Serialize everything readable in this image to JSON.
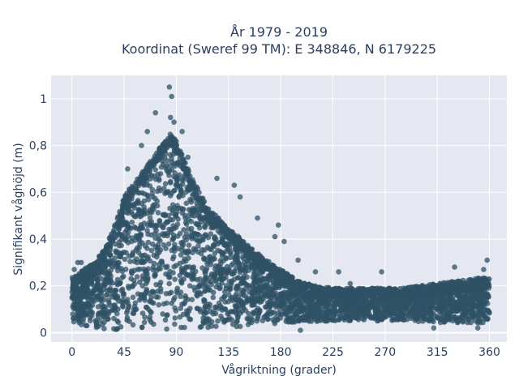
{
  "chart_data": {
    "type": "scatter",
    "title_line1": "År 1979 - 2019",
    "title_line2": "Koordinat (Sweref 99 TM): E 348846, N 6179225",
    "xlabel": "Vågriktning (grader)",
    "ylabel": "Signifikant våghöjd (m)",
    "xlim": [
      -18,
      375
    ],
    "ylim": [
      -0.04,
      1.1
    ],
    "xticks": [
      0,
      45,
      90,
      135,
      180,
      225,
      270,
      315,
      360
    ],
    "xtick_labels": [
      "0",
      "45",
      "90",
      "135",
      "180",
      "225",
      "270",
      "315",
      "360"
    ],
    "yticks": [
      0,
      0.2,
      0.4,
      0.6,
      0.8,
      1
    ],
    "ytick_labels": [
      "0",
      "0,2",
      "0,4",
      "0,6",
      "0,8",
      "1"
    ],
    "grid": true,
    "marker_color": "#2f5165",
    "plot_bg": "#e5e8f0",
    "upper_envelope": {
      "x": [
        0,
        10,
        20,
        30,
        40,
        45,
        50,
        60,
        70,
        80,
        85,
        90,
        100,
        110,
        120,
        135,
        150,
        165,
        180,
        195,
        210,
        225,
        240,
        255,
        270,
        285,
        300,
        315,
        330,
        345,
        360
      ],
      "y": [
        0.24,
        0.27,
        0.3,
        0.38,
        0.5,
        0.58,
        0.62,
        0.68,
        0.75,
        0.82,
        0.85,
        0.82,
        0.7,
        0.6,
        0.52,
        0.45,
        0.38,
        0.32,
        0.27,
        0.22,
        0.2,
        0.19,
        0.19,
        0.19,
        0.19,
        0.19,
        0.2,
        0.21,
        0.22,
        0.23,
        0.24
      ]
    },
    "lower_envelope": {
      "x": [
        0,
        20,
        40,
        90,
        140,
        180,
        225,
        270,
        315,
        360
      ],
      "y": [
        0.04,
        0.02,
        0.01,
        0.01,
        0.02,
        0.04,
        0.05,
        0.05,
        0.04,
        0.04
      ]
    },
    "outliers": [
      {
        "x": 84,
        "y": 1.05
      },
      {
        "x": 86,
        "y": 1.01
      },
      {
        "x": 85,
        "y": 0.92
      },
      {
        "x": 88,
        "y": 0.9
      },
      {
        "x": 72,
        "y": 0.94
      },
      {
        "x": 65,
        "y": 0.86
      },
      {
        "x": 60,
        "y": 0.8
      },
      {
        "x": 48,
        "y": 0.7
      },
      {
        "x": 95,
        "y": 0.86
      },
      {
        "x": 100,
        "y": 0.75
      },
      {
        "x": 125,
        "y": 0.66
      },
      {
        "x": 140,
        "y": 0.63
      },
      {
        "x": 145,
        "y": 0.58
      },
      {
        "x": 160,
        "y": 0.49
      },
      {
        "x": 178,
        "y": 0.46
      },
      {
        "x": 175,
        "y": 0.41
      },
      {
        "x": 183,
        "y": 0.39
      },
      {
        "x": 195,
        "y": 0.31
      },
      {
        "x": 210,
        "y": 0.26
      },
      {
        "x": 230,
        "y": 0.26
      },
      {
        "x": 240,
        "y": 0.21
      },
      {
        "x": 267,
        "y": 0.26
      },
      {
        "x": 330,
        "y": 0.28
      },
      {
        "x": 358,
        "y": 0.31
      },
      {
        "x": 355,
        "y": 0.27
      },
      {
        "x": 2,
        "y": 0.27
      },
      {
        "x": 5,
        "y": 0.3
      },
      {
        "x": 8,
        "y": 0.3
      },
      {
        "x": 197,
        "y": 0.01
      },
      {
        "x": 312,
        "y": 0.02
      },
      {
        "x": 350,
        "y": 0.02
      }
    ]
  }
}
